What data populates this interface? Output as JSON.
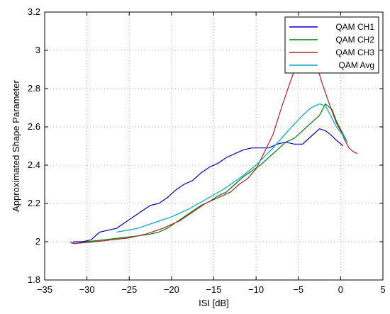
{
  "chart_data": {
    "type": "line",
    "title": "",
    "xlabel": "ISI [dB]",
    "ylabel": "Approximated Shape Parameter",
    "xlim": [
      -35,
      5
    ],
    "ylim": [
      1.8,
      3.2
    ],
    "xticks": [
      -35,
      -30,
      -25,
      -20,
      -15,
      -10,
      -5,
      0,
      5
    ],
    "yticks": [
      1.8,
      2.0,
      2.2,
      2.4,
      2.6,
      2.8,
      3.0,
      3.2
    ],
    "xtick_labels": [
      "−35",
      "−30",
      "−25",
      "−20",
      "−15",
      "−10",
      "−5",
      "0",
      "5"
    ],
    "ytick_labels": [
      "1.8",
      "2",
      "2.2",
      "2.4",
      "2.6",
      "2.8",
      "3",
      "3.2"
    ],
    "grid": true,
    "legend_position": "top-right",
    "series": [
      {
        "name": "QAM CH1",
        "color": "#0000cc",
        "x": [
          -31.8,
          -31.5,
          -30.5,
          -29.5,
          -28.5,
          -27.5,
          -26.5,
          -25.5,
          -24.5,
          -23.5,
          -22.5,
          -21.5,
          -20.5,
          -19.5,
          -18.5,
          -17.5,
          -16.5,
          -15.5,
          -14.5,
          -13.5,
          -12.5,
          -11.5,
          -10.5,
          -9.5,
          -8.5,
          -7.5,
          -6.5,
          -5.5,
          -4.5,
          -3.5,
          -2.5,
          -1.8,
          -1.2,
          -0.5,
          0.3
        ],
        "y": [
          1.99,
          2.0,
          2.0,
          2.01,
          2.05,
          2.06,
          2.07,
          2.1,
          2.13,
          2.16,
          2.19,
          2.2,
          2.23,
          2.27,
          2.3,
          2.32,
          2.36,
          2.39,
          2.41,
          2.44,
          2.46,
          2.48,
          2.49,
          2.49,
          2.49,
          2.51,
          2.52,
          2.51,
          2.51,
          2.55,
          2.59,
          2.58,
          2.56,
          2.53,
          2.5
        ]
      },
      {
        "name": "QAM CH2",
        "color": "#007f00",
        "x": [
          -32.0,
          -31.5,
          -30,
          -28,
          -26,
          -24,
          -22.5,
          -21.5,
          -20.5,
          -19.5,
          -18.5,
          -17.5,
          -16.5,
          -15.5,
          -14.5,
          -13.5,
          -12.5,
          -11.5,
          -10.5,
          -9.5,
          -8.5,
          -7.5,
          -6.5,
          -5.5,
          -4.5,
          -3.5,
          -2.5,
          -1.8,
          -1.0,
          -0.5,
          0.2,
          0.8
        ],
        "y": [
          2.0,
          1.99,
          2.0,
          2.01,
          2.02,
          2.03,
          2.04,
          2.05,
          2.07,
          2.1,
          2.13,
          2.16,
          2.19,
          2.21,
          2.24,
          2.26,
          2.3,
          2.34,
          2.37,
          2.4,
          2.44,
          2.48,
          2.52,
          2.54,
          2.58,
          2.62,
          2.66,
          2.72,
          2.69,
          2.63,
          2.57,
          2.52
        ]
      },
      {
        "name": "QAM CH3",
        "color": "#b22222",
        "x": [
          -32.0,
          -31.5,
          -29,
          -27,
          -25,
          -23,
          -21,
          -19,
          -18,
          -17,
          -16,
          -15,
          -14,
          -13,
          -12,
          -11,
          -10,
          -9,
          -8,
          -7,
          -6,
          -5,
          -4,
          -3,
          -2.2,
          -1.5,
          -1,
          -0.5,
          0,
          0.5,
          1.0,
          1.5,
          2.0
        ],
        "y": [
          2.0,
          1.99,
          2.0,
          2.01,
          2.02,
          2.04,
          2.07,
          2.11,
          2.14,
          2.17,
          2.2,
          2.22,
          2.24,
          2.26,
          2.3,
          2.33,
          2.38,
          2.47,
          2.56,
          2.7,
          2.83,
          2.95,
          2.99,
          2.95,
          2.83,
          2.74,
          2.68,
          2.62,
          2.58,
          2.53,
          2.49,
          2.47,
          2.46
        ]
      },
      {
        "name": "QAM Avg",
        "color": "#00aacc",
        "x": [
          -26.5,
          -24,
          -22,
          -20,
          -18,
          -16,
          -14,
          -12,
          -10,
          -8,
          -6,
          -4.5,
          -3.5,
          -2.5,
          -1.8,
          -1.2,
          -0.5,
          0.2,
          0.8
        ],
        "y": [
          2.05,
          2.07,
          2.1,
          2.13,
          2.17,
          2.22,
          2.27,
          2.33,
          2.4,
          2.49,
          2.59,
          2.66,
          2.7,
          2.72,
          2.71,
          2.66,
          2.6,
          2.56,
          2.52
        ]
      }
    ]
  }
}
